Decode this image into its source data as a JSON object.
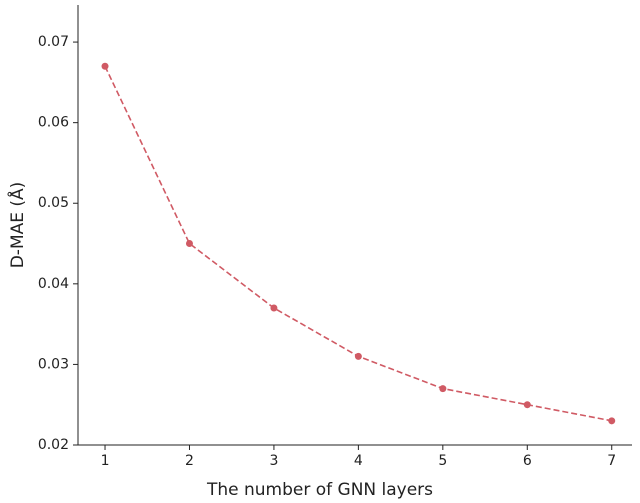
{
  "chart_data": {
    "type": "line",
    "xlabel": "The number of GNN layers",
    "ylabel": "D-MAE (Å)",
    "x": [
      1,
      2,
      3,
      4,
      5,
      6,
      7
    ],
    "series": [
      {
        "color": "#d05a64",
        "values": [
          0.067,
          0.045,
          0.037,
          0.031,
          0.027,
          0.025,
          0.023
        ]
      }
    ],
    "xlim": [
      0.68,
      7.24
    ],
    "xticks": [
      1,
      2,
      3,
      4,
      5,
      6,
      7
    ],
    "ylim": [
      0.02,
      0.0746
    ],
    "yticks": [
      0.02,
      0.03,
      0.04,
      0.05,
      0.06,
      0.07
    ],
    "line_style": "dashed",
    "grid": false
  }
}
